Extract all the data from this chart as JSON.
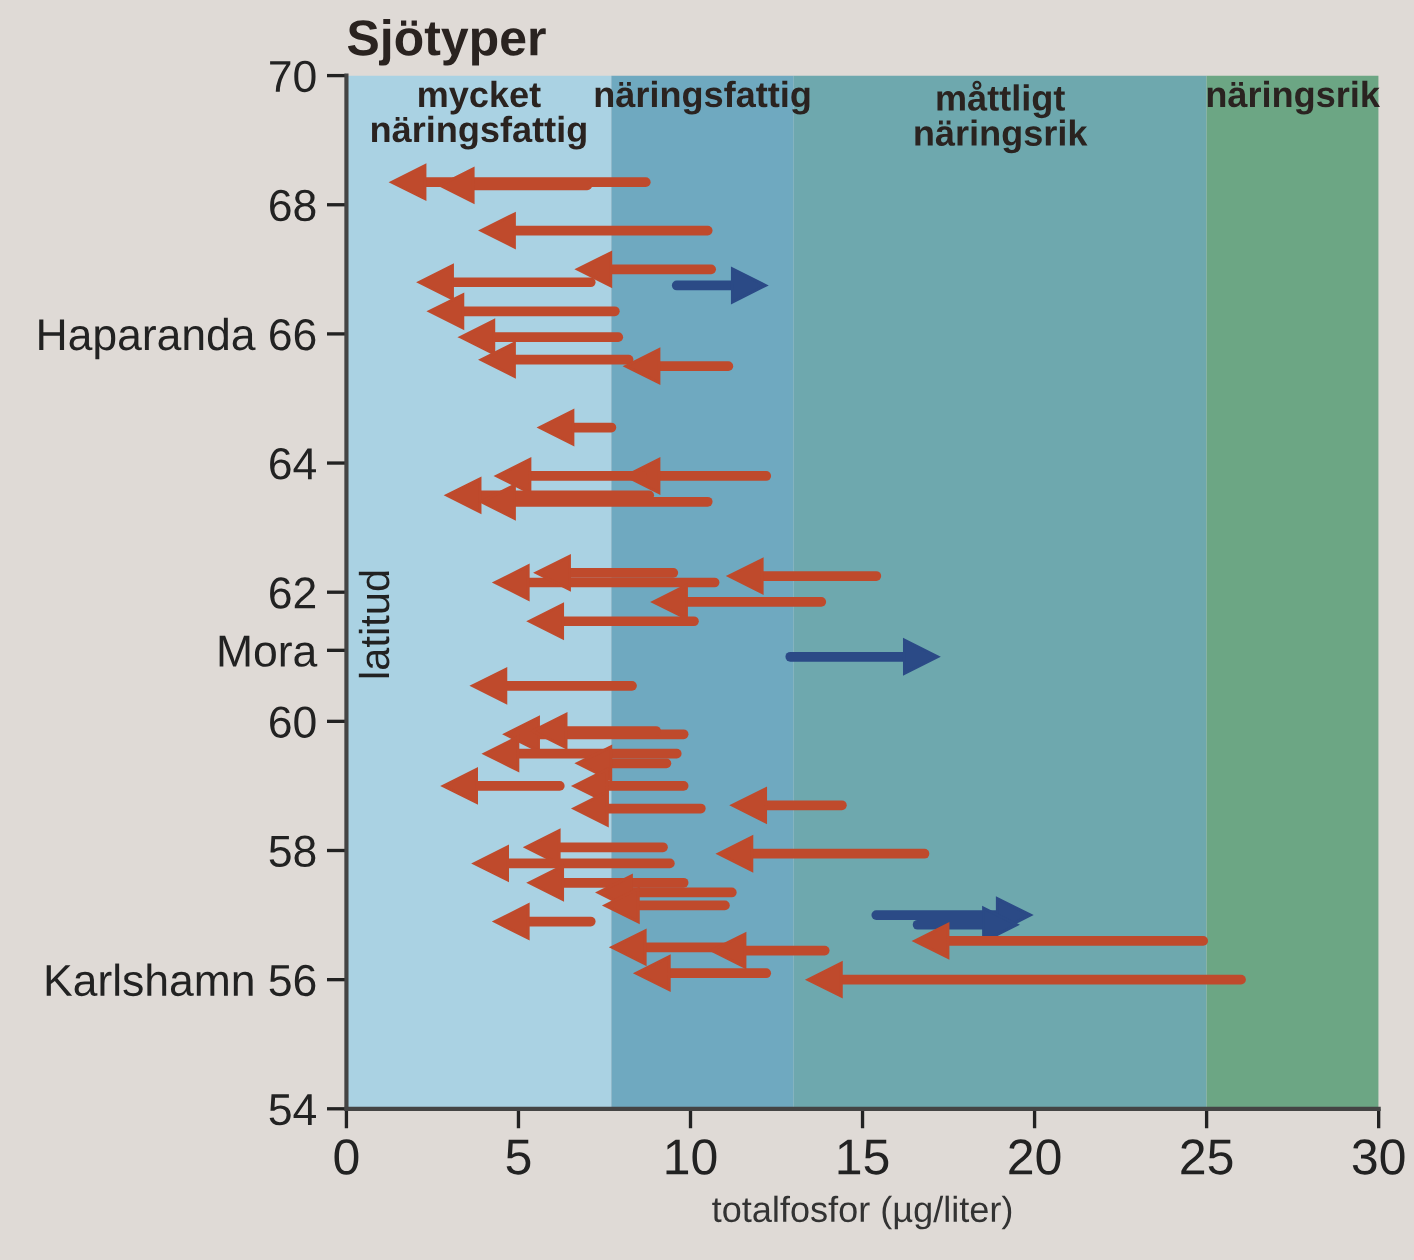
{
  "chart_data": {
    "type": "line",
    "title": "Sjötyper",
    "xlabel": "totalfosfor (µg/liter)",
    "ylabel": "latitud",
    "xlim": [
      0,
      30
    ],
    "xticks": [
      0,
      5,
      10,
      15,
      20,
      25,
      30
    ],
    "ylim": [
      54,
      70
    ],
    "yticks": [
      54,
      {
        "value": 56,
        "label": "Karlshamn 56"
      },
      58,
      60,
      {
        "value": 61.1,
        "label": "Mora"
      },
      62,
      64,
      {
        "value": 66,
        "label": "Haparanda 66"
      },
      68,
      70
    ],
    "grid": false,
    "marker": "triangle",
    "line_style": "solid",
    "bands": [
      {
        "axis": "x",
        "from": 0,
        "to": 7.7,
        "label": "mycket\nnäringsfattig",
        "color": "#aad2e3"
      },
      {
        "axis": "x",
        "from": 7.7,
        "to": 13,
        "label": "näringsfattig",
        "color": "#6fa9c0"
      },
      {
        "axis": "x",
        "from": 13,
        "to": 25,
        "label": "måttligt\nnäringsrik",
        "color": "#6ea8ae"
      },
      {
        "axis": "x",
        "from": 25,
        "to": 30,
        "label": "näringsrik",
        "color": "#6ca684"
      }
    ],
    "series": [
      {
        "color": "#bf4a2c",
        "x": [
          8.7,
          1.8
        ],
        "values": [
          68.35,
          68.35
        ]
      },
      {
        "color": "#bf4a2c",
        "x": [
          7.0,
          3.2
        ],
        "values": [
          68.3,
          68.3
        ]
      },
      {
        "color": "#bf4a2c",
        "x": [
          10.5,
          4.4
        ],
        "values": [
          67.6,
          67.6
        ]
      },
      {
        "color": "#bf4a2c",
        "x": [
          10.6,
          7.2
        ],
        "values": [
          67.0,
          67.0
        ]
      },
      {
        "color": "#2b4a86",
        "x": [
          9.6,
          11.7
        ],
        "values": [
          66.75,
          66.75
        ]
      },
      {
        "color": "#bf4a2c",
        "x": [
          7.1,
          2.6
        ],
        "values": [
          66.8,
          66.8
        ]
      },
      {
        "color": "#bf4a2c",
        "x": [
          7.8,
          2.9
        ],
        "values": [
          66.35,
          66.35
        ]
      },
      {
        "color": "#bf4a2c",
        "x": [
          7.9,
          3.8
        ],
        "values": [
          65.95,
          65.95
        ]
      },
      {
        "color": "#bf4a2c",
        "x": [
          8.2,
          4.4
        ],
        "values": [
          65.6,
          65.6
        ]
      },
      {
        "color": "#bf4a2c",
        "x": [
          11.1,
          8.6
        ],
        "values": [
          65.5,
          65.5
        ]
      },
      {
        "color": "#bf4a2c",
        "x": [
          7.7,
          6.1
        ],
        "values": [
          64.55,
          64.55
        ]
      },
      {
        "color": "#bf4a2c",
        "x": [
          12.2,
          8.6
        ],
        "values": [
          63.8,
          63.8
        ]
      },
      {
        "color": "#bf4a2c",
        "x": [
          8.6,
          4.85
        ],
        "values": [
          63.8,
          63.8
        ]
      },
      {
        "color": "#bf4a2c",
        "x": [
          8.8,
          3.4
        ],
        "values": [
          63.5,
          63.5
        ]
      },
      {
        "color": "#bf4a2c",
        "x": [
          10.5,
          4.4
        ],
        "values": [
          63.4,
          63.4
        ]
      },
      {
        "color": "#bf4a2c",
        "x": [
          15.4,
          11.6
        ],
        "values": [
          62.25,
          62.25
        ]
      },
      {
        "color": "#bf4a2c",
        "x": [
          10.7,
          4.8
        ],
        "values": [
          62.15,
          62.15
        ]
      },
      {
        "color": "#bf4a2c",
        "x": [
          9.5,
          6.0
        ],
        "values": [
          62.3,
          62.3
        ]
      },
      {
        "color": "#bf4a2c",
        "x": [
          13.8,
          9.4
        ],
        "values": [
          61.85,
          61.85
        ]
      },
      {
        "color": "#bf4a2c",
        "x": [
          10.1,
          5.8
        ],
        "values": [
          61.55,
          61.55
        ]
      },
      {
        "color": "#2b4a86",
        "x": [
          12.9,
          16.7
        ],
        "values": [
          61.0,
          61.0
        ]
      },
      {
        "color": "#bf4a2c",
        "x": [
          8.3,
          4.15
        ],
        "values": [
          60.55,
          60.55
        ]
      },
      {
        "color": "#bf4a2c",
        "x": [
          9.8,
          5.1
        ],
        "values": [
          59.8,
          59.8
        ]
      },
      {
        "color": "#bf4a2c",
        "x": [
          9.0,
          5.9
        ],
        "values": [
          59.85,
          59.85
        ]
      },
      {
        "color": "#bf4a2c",
        "x": [
          9.6,
          4.5
        ],
        "values": [
          59.5,
          59.5
        ]
      },
      {
        "color": "#bf4a2c",
        "x": [
          9.3,
          7.2
        ],
        "values": [
          59.35,
          59.35
        ]
      },
      {
        "color": "#bf4a2c",
        "x": [
          6.2,
          3.3
        ],
        "values": [
          59.0,
          59.0
        ]
      },
      {
        "color": "#bf4a2c",
        "x": [
          9.8,
          7.1
        ],
        "values": [
          59.0,
          59.0
        ]
      },
      {
        "color": "#bf4a2c",
        "x": [
          10.3,
          7.1
        ],
        "values": [
          58.65,
          58.65
        ]
      },
      {
        "color": "#bf4a2c",
        "x": [
          14.4,
          11.7
        ],
        "values": [
          58.7,
          58.7
        ]
      },
      {
        "color": "#bf4a2c",
        "x": [
          9.2,
          5.7
        ],
        "values": [
          58.05,
          58.05
        ]
      },
      {
        "color": "#bf4a2c",
        "x": [
          16.8,
          11.3
        ],
        "values": [
          57.95,
          57.95
        ]
      },
      {
        "color": "#bf4a2c",
        "x": [
          9.4,
          4.2
        ],
        "values": [
          57.8,
          57.8
        ]
      },
      {
        "color": "#bf4a2c",
        "x": [
          9.8,
          5.8
        ],
        "values": [
          57.5,
          57.5
        ]
      },
      {
        "color": "#bf4a2c",
        "x": [
          11.2,
          7.8
        ],
        "values": [
          57.35,
          57.35
        ]
      },
      {
        "color": "#bf4a2c",
        "x": [
          11.0,
          8.0
        ],
        "values": [
          57.15,
          57.15
        ]
      },
      {
        "color": "#bf4a2c",
        "x": [
          7.1,
          4.8
        ],
        "values": [
          56.9,
          56.9
        ]
      },
      {
        "color": "#2b4a86",
        "x": [
          15.4,
          19.4
        ],
        "values": [
          57.0,
          57.0
        ]
      },
      {
        "color": "#2b4a86",
        "x": [
          16.6,
          19.0
        ],
        "values": [
          56.85,
          56.85
        ]
      },
      {
        "color": "#bf4a2c",
        "x": [
          24.9,
          17.0
        ],
        "values": [
          56.6,
          56.6
        ]
      },
      {
        "color": "#bf4a2c",
        "x": [
          11.2,
          8.2
        ],
        "values": [
          56.5,
          56.5
        ]
      },
      {
        "color": "#bf4a2c",
        "x": [
          13.9,
          11.1
        ],
        "values": [
          56.45,
          56.45
        ]
      },
      {
        "color": "#bf4a2c",
        "x": [
          12.2,
          8.9
        ],
        "values": [
          56.1,
          56.1
        ]
      },
      {
        "color": "#bf4a2c",
        "x": [
          26.0,
          13.9
        ],
        "values": [
          56.0,
          56.0
        ]
      }
    ]
  }
}
